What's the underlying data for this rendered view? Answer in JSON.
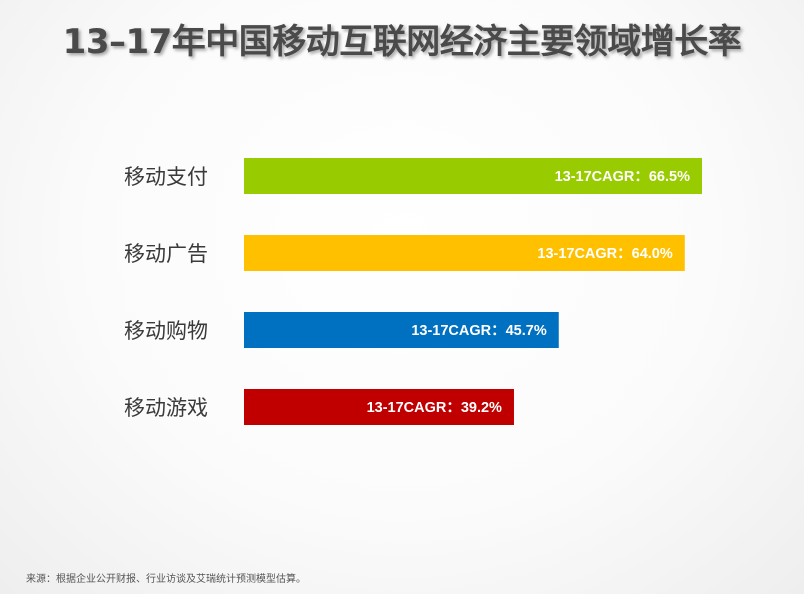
{
  "chart_data": {
    "type": "bar",
    "orientation": "horizontal",
    "title": "13–17年中国移动互联网经济主要领域增长率",
    "categories": [
      "移动支付",
      "移动广告",
      "移动购物",
      "移动游戏"
    ],
    "values": [
      66.5,
      64.0,
      45.7,
      39.2
    ],
    "data_labels": [
      "13-17CAGR：66.5%",
      "13-17CAGR：64.0%",
      "13-17CAGR：45.7%",
      "13-17CAGR：39.2%"
    ],
    "colors": [
      "#99cc00",
      "#ffc000",
      "#0070c0",
      "#c00000"
    ],
    "xlim": [
      0,
      66.5
    ],
    "grid": false,
    "legend": "none"
  },
  "source_note": "来源：根据企业公开财报、行业访谈及艾瑞统计预测模型估算。"
}
